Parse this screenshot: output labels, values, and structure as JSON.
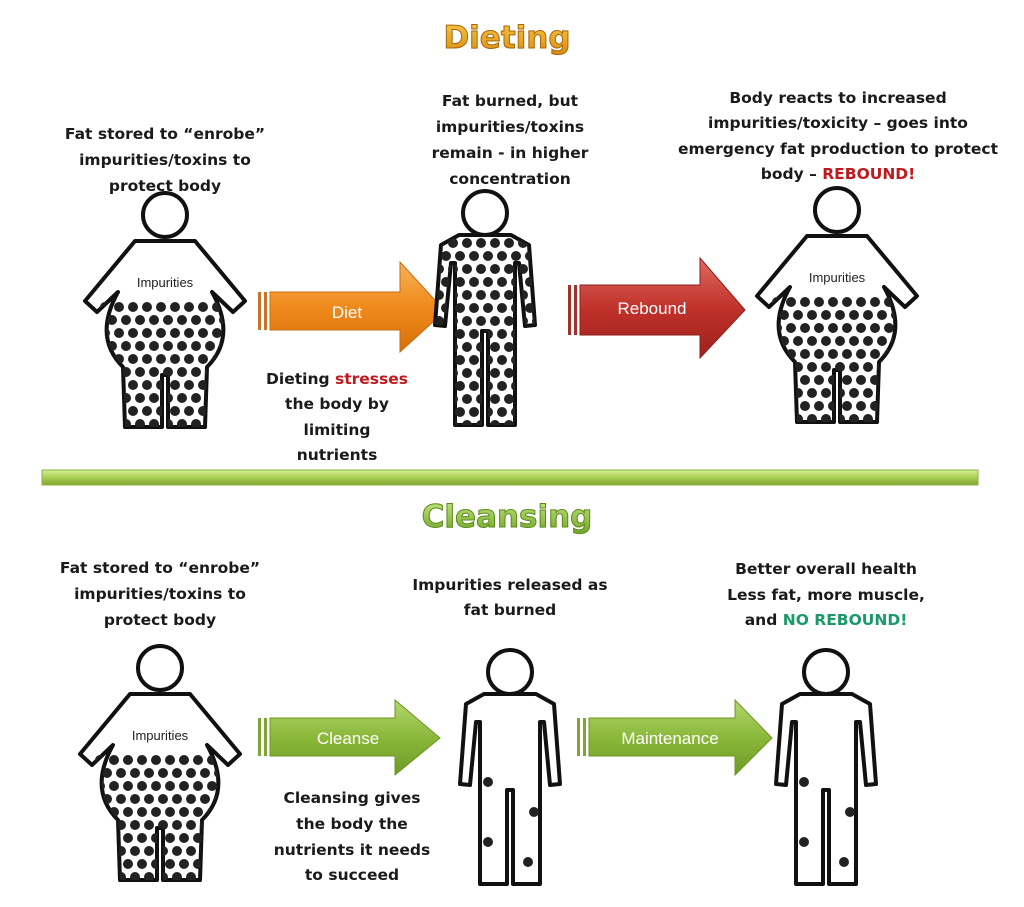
{
  "colors": {
    "dieting_title": "#e8a317",
    "cleansing_title": "#8cc63f",
    "diet_arrow": "#f08a1c",
    "rebound_arrow": "#c0322b",
    "green_arrow": "#8ab83a",
    "emphasis_red": "#c0191e",
    "emphasis_green": "#1a9a6a",
    "divider": "#a9cf52"
  },
  "dieting": {
    "title": "Dieting",
    "stage1": {
      "lines": [
        "Fat stored to “enrobe”",
        "impurities/toxins to",
        "protect body"
      ],
      "figure_label": "Impurities"
    },
    "arrow1": {
      "label": "Diet"
    },
    "arrow1_note": {
      "line1_a": "Dieting ",
      "line1_b": "stresses",
      "line2": "the body by",
      "line3": "limiting",
      "line4": "nutrients"
    },
    "stage2": {
      "lines": [
        "Fat burned, but",
        "impurities/toxins",
        "remain  - in higher",
        "concentration"
      ]
    },
    "arrow2": {
      "label": "Rebound"
    },
    "stage3": {
      "lines": [
        "Body reacts to increased",
        "impurities/toxicity – goes into",
        "emergency fat production to protect"
      ],
      "line4_a": "body – ",
      "line4_b": "REBOUND!",
      "figure_label": "Impurities"
    }
  },
  "cleansing": {
    "title": "Cleansing",
    "stage1": {
      "lines": [
        "Fat stored to “enrobe”",
        "impurities/toxins to",
        "protect body"
      ],
      "figure_label": "Impurities"
    },
    "arrow1": {
      "label": "Cleanse"
    },
    "arrow1_note": {
      "lines": [
        "Cleansing gives",
        "the body the",
        "nutrients it needs",
        "to succeed"
      ]
    },
    "stage2": {
      "lines": [
        "Impurities released as",
        "fat burned"
      ]
    },
    "arrow2": {
      "label": "Maintenance"
    },
    "stage3": {
      "lines": [
        "Better overall health",
        "Less fat, more muscle,"
      ],
      "line3_a": "and ",
      "line3_b": "NO REBOUND!"
    }
  }
}
